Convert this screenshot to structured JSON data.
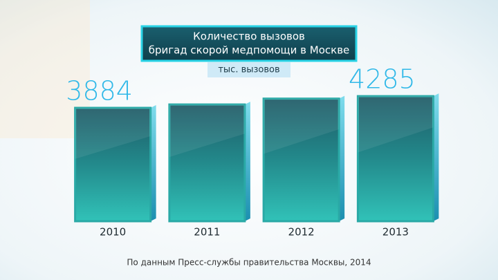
{
  "chart_data": {
    "type": "bar",
    "title": [
      "Количество вызовов",
      "бригад скорой медпомощи в Москве"
    ],
    "subtitle": "тыс. вызовов",
    "source": "По данным Пресс-службы правительства Москвы, 2014",
    "categories": [
      "2010",
      "2011",
      "2012",
      "2013"
    ],
    "values": [
      3884,
      4000,
      4200,
      4285
    ],
    "value_labels": [
      "3884",
      null,
      null,
      "4285"
    ],
    "color": "#2aa9a6",
    "ylim": [
      0,
      4500
    ]
  }
}
